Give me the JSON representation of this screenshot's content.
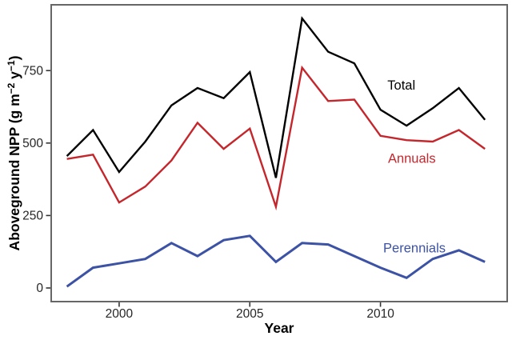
{
  "chart_data": {
    "type": "line",
    "title": "",
    "xlabel": "Year",
    "ylabel": "Aboveground NPP (g m⁻² y⁻¹)",
    "ylabel_parts": [
      {
        "text": "Aboveground NPP (g m",
        "sup": false
      },
      {
        "text": "−2",
        "sup": true
      },
      {
        "text": " y",
        "sup": false
      },
      {
        "text": "−1",
        "sup": true
      },
      {
        "text": ")",
        "sup": false
      }
    ],
    "x": [
      1998,
      1999,
      2000,
      2001,
      2002,
      2003,
      2004,
      2005,
      2006,
      2007,
      2008,
      2009,
      2010,
      2011,
      2012,
      2013,
      2014
    ],
    "series": [
      {
        "name": "Total",
        "color": "#000000",
        "line_width": 2.4,
        "values": [
          455,
          545,
          400,
          505,
          630,
          690,
          655,
          745,
          380,
          930,
          815,
          775,
          615,
          560,
          620,
          690,
          580
        ],
        "label": {
          "text": "Total",
          "x": 2010.8,
          "y": 700
        }
      },
      {
        "name": "Annuals",
        "color": "#C5262C",
        "line_width": 2.4,
        "values": [
          445,
          460,
          295,
          350,
          440,
          570,
          480,
          550,
          280,
          760,
          645,
          650,
          525,
          510,
          505,
          545,
          480
        ],
        "label": {
          "text": "Annuals",
          "x": 2011.2,
          "y": 447
        }
      },
      {
        "name": "Perennials",
        "color": "#3C52A5",
        "line_width": 3,
        "values": [
          5,
          70,
          85,
          100,
          155,
          110,
          165,
          180,
          90,
          155,
          150,
          110,
          70,
          35,
          100,
          130,
          90
        ],
        "label": {
          "text": "Perennials",
          "x": 2011.3,
          "y": 138
        }
      }
    ],
    "x_ticks": [
      2000,
      2005,
      2010
    ],
    "y_ticks": [
      0,
      250,
      500,
      750
    ],
    "xlim": [
      1997.4,
      2014.85
    ],
    "ylim": [
      -47,
      977
    ],
    "grid": false,
    "legend": "inline-labels",
    "panel_border_color": "#666666",
    "tick_color": "#333333",
    "tick_label_color": "#262626",
    "axis_title_color": "#000000"
  }
}
